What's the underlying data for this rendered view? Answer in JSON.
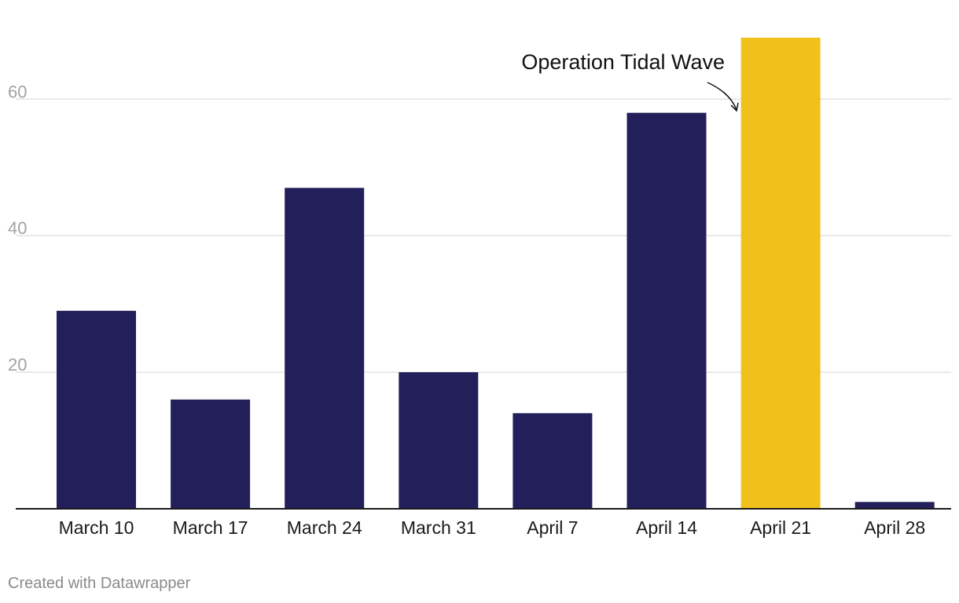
{
  "chart_data": {
    "type": "bar",
    "categories": [
      "March 10",
      "March 17",
      "March 24",
      "March 31",
      "April 7",
      "April 14",
      "April 21",
      "April 28"
    ],
    "values": [
      29,
      16,
      47,
      20,
      14,
      58,
      69,
      1
    ],
    "ylim": [
      0,
      69
    ],
    "yticks": [
      20,
      40,
      60
    ],
    "grid": true,
    "highlight_index": 6,
    "colors": {
      "bar": "#221f5a",
      "highlight": "#f2c01b",
      "grid": "#e2e2e2",
      "axis": "#1a1a1a"
    },
    "annotation": {
      "text": "Operation Tidal Wave",
      "category": "April 21"
    }
  },
  "footer": {
    "credit": "Created with Datawrapper"
  }
}
